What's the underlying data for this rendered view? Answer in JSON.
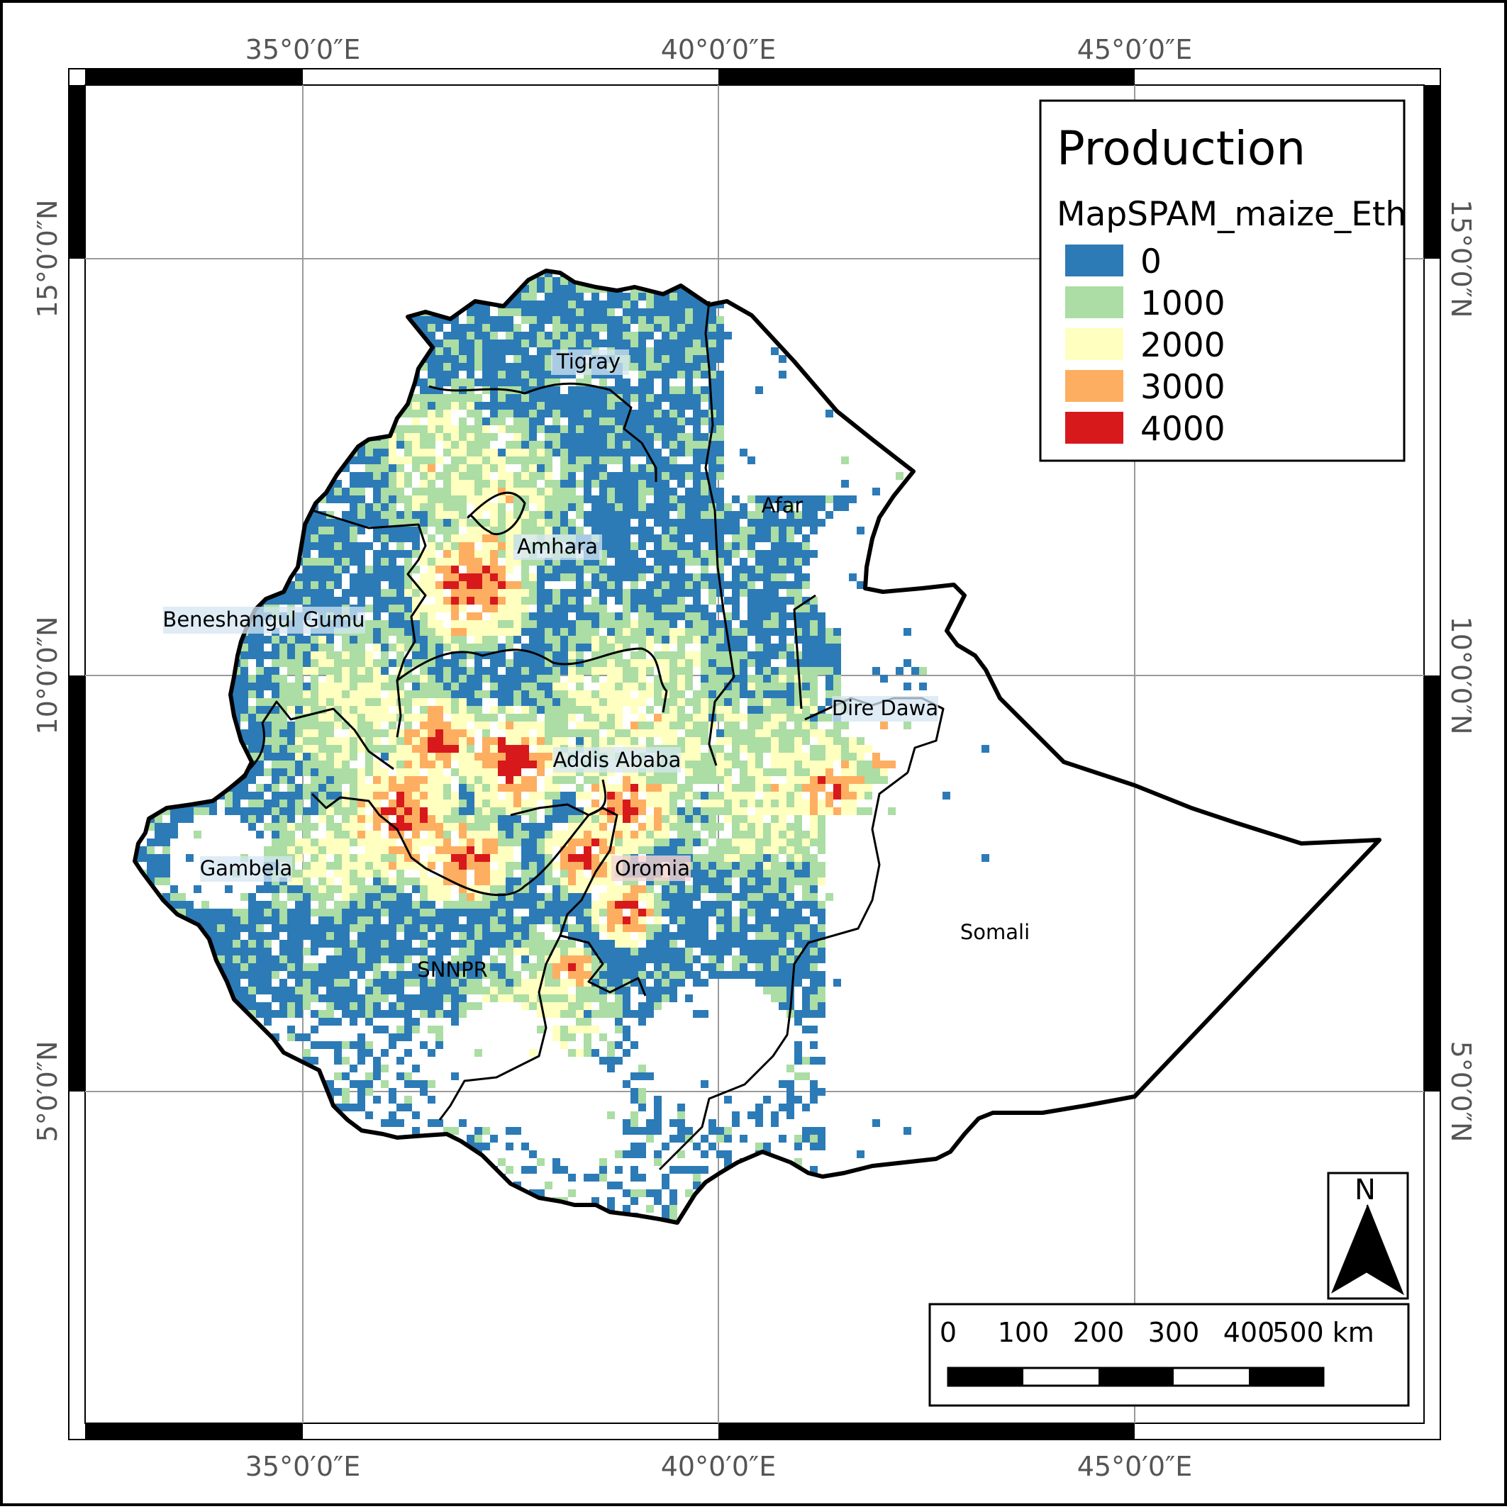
{
  "map": {
    "coordinate_labels": {
      "top": [
        "35°0′0″E",
        "40°0′0″E",
        "45°0′0″E"
      ],
      "bottom": [
        "35°0′0″E",
        "40°0′0″E",
        "45°0′0″E"
      ],
      "left": [
        "15°0′0″N",
        "10°0′0″N",
        "5°0′0″N"
      ],
      "right": [
        "15°0′0″N",
        "10°0′0″N",
        "5°0′0″N"
      ]
    },
    "regions": [
      {
        "name": "Tigray",
        "highlight": false
      },
      {
        "name": "Afar",
        "highlight": false
      },
      {
        "name": "Amhara",
        "highlight": true
      },
      {
        "name": "Beneshangul Gumu",
        "highlight": true
      },
      {
        "name": "Dire Dawa",
        "highlight": true
      },
      {
        "name": "Addis Ababa",
        "highlight": true
      },
      {
        "name": "Gambela",
        "highlight": true
      },
      {
        "name": "Oromia",
        "highlight": true
      },
      {
        "name": "Somali",
        "highlight": false
      },
      {
        "name": "SNNPR",
        "highlight": false
      }
    ],
    "colors": {
      "class_0": "#2c7bb6",
      "class_1000": "#abdda4",
      "class_2000": "#ffffbf",
      "class_3000": "#fdae61",
      "class_4000": "#d7191c"
    }
  },
  "legend": {
    "title": "Production",
    "layer_name": "MapSPAM_maize_Eth",
    "entries": [
      {
        "label": "0",
        "color": "#2c7bb6"
      },
      {
        "label": "1000",
        "color": "#abdda4"
      },
      {
        "label": "2000",
        "color": "#ffffbf"
      },
      {
        "label": "3000",
        "color": "#fdae61"
      },
      {
        "label": "4000",
        "color": "#d7191c"
      }
    ]
  },
  "north_arrow": {
    "label": "N"
  },
  "scale_bar": {
    "labels": [
      "0",
      "100",
      "200",
      "300",
      "400",
      "500 km"
    ]
  }
}
